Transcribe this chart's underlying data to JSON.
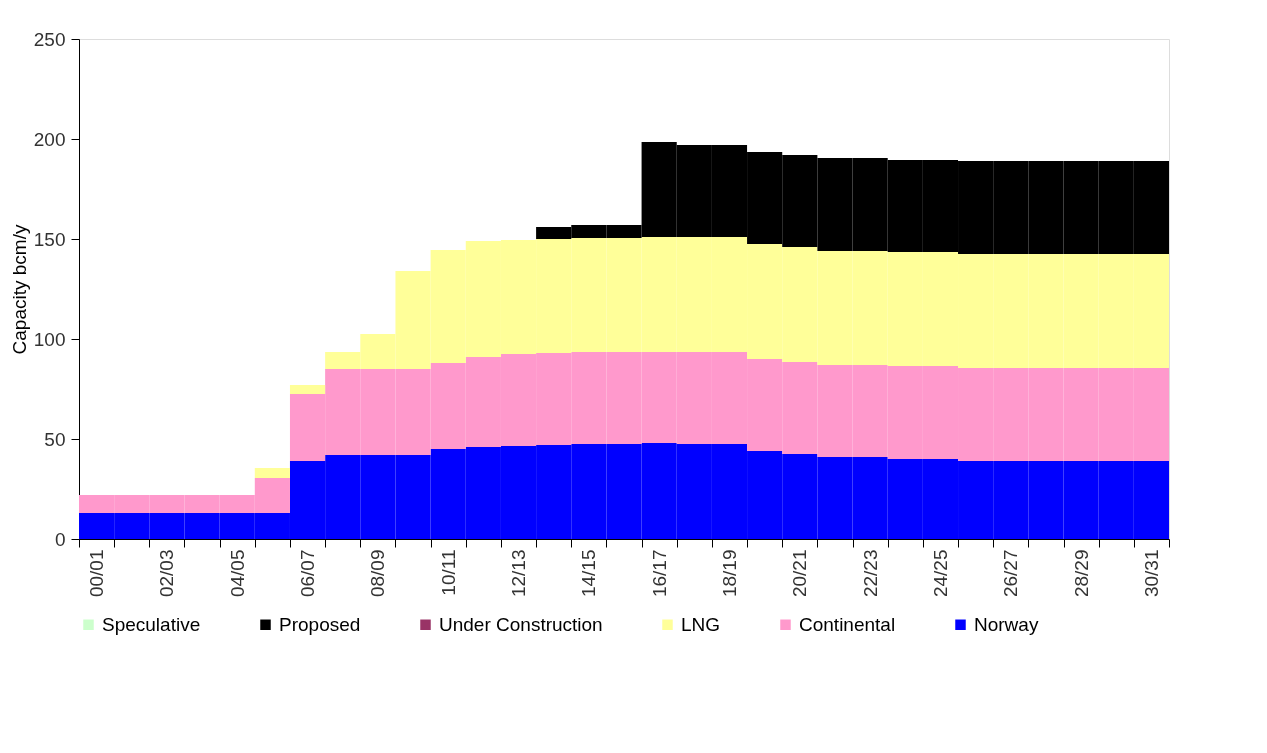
{
  "chart_data": {
    "type": "bar",
    "stacked": true,
    "ylabel": "Capacity bcm/y",
    "categories": [
      "00/01",
      null,
      "02/03",
      null,
      "04/05",
      null,
      "06/07",
      null,
      "08/09",
      null,
      "10/11",
      null,
      "12/13",
      null,
      "14/15",
      null,
      "16/17",
      null,
      "18/19",
      null,
      "20/21",
      null,
      "22/23",
      null,
      "24/25",
      null,
      "26/27",
      null,
      "28/29",
      null,
      "30/31"
    ],
    "series": [
      {
        "name": "Norway",
        "color": "#0000ff",
        "values": [
          13,
          13,
          13,
          13,
          13,
          13,
          39,
          42,
          42,
          42,
          45,
          46,
          46.5,
          47,
          47.5,
          47.5,
          48,
          47.5,
          47.5,
          44,
          42.5,
          41,
          41,
          40,
          40,
          39,
          39,
          39,
          39,
          39,
          39
        ]
      },
      {
        "name": "Continental",
        "color": "#ff99cc",
        "values": [
          9,
          9,
          9,
          9,
          9,
          17.5,
          33.5,
          43,
          43,
          43,
          43,
          45,
          46,
          46,
          46,
          46,
          45.5,
          46,
          46,
          46,
          46,
          46,
          46,
          46.5,
          46.5,
          46.5,
          46.5,
          46.5,
          46.5,
          46.5,
          46.5
        ]
      },
      {
        "name": "LNG",
        "color": "#ffff99",
        "values": [
          null,
          null,
          null,
          null,
          null,
          5,
          4.5,
          8.5,
          17.5,
          49,
          56.5,
          58,
          57,
          57,
          57,
          57,
          57.5,
          57.5,
          57.5,
          57.5,
          57.5,
          57,
          57,
          57,
          57,
          57,
          57,
          57,
          57,
          57,
          57
        ]
      },
      {
        "name": "Under Construction",
        "color": "#993366",
        "values": [
          null,
          null,
          null,
          null,
          null,
          null,
          null,
          null,
          null,
          null,
          null,
          null,
          null,
          null,
          null,
          null,
          null,
          null,
          null,
          null,
          null,
          null,
          null,
          null,
          null,
          null,
          null,
          null,
          null,
          null,
          null
        ]
      },
      {
        "name": "Proposed",
        "color": "#000000",
        "values": [
          null,
          null,
          null,
          null,
          null,
          null,
          null,
          null,
          null,
          null,
          null,
          null,
          null,
          6,
          6.5,
          6.5,
          47.5,
          46,
          46,
          46,
          46,
          46.5,
          46.5,
          46,
          46,
          46.5,
          46.5,
          46.5,
          46.5,
          46.5,
          46.5
        ]
      },
      {
        "name": "Speculative",
        "color": "#ccffcc",
        "values": [
          null,
          null,
          null,
          null,
          null,
          null,
          null,
          null,
          null,
          null,
          null,
          null,
          null,
          null,
          null,
          null,
          null,
          null,
          null,
          null,
          null,
          null,
          null,
          null,
          null,
          null,
          null,
          null,
          null,
          null,
          null
        ]
      }
    ],
    "ylim": [
      0,
      250
    ],
    "yticks": [
      0,
      50,
      100,
      150,
      200,
      250
    ],
    "grid": false,
    "legend": "bottom"
  }
}
